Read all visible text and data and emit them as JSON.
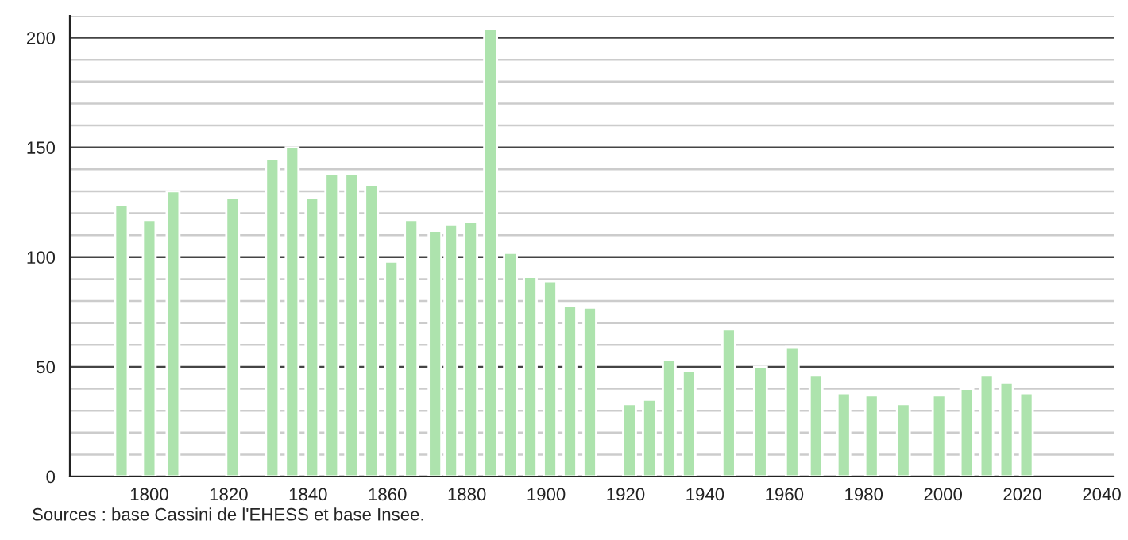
{
  "chart_data": {
    "type": "bar",
    "x": [
      1793,
      1800,
      1806,
      1821,
      1831,
      1836,
      1841,
      1846,
      1851,
      1856,
      1861,
      1866,
      1872,
      1876,
      1881,
      1886,
      1891,
      1896,
      1901,
      1906,
      1911,
      1921,
      1926,
      1931,
      1936,
      1946,
      1954,
      1962,
      1968,
      1975,
      1982,
      1990,
      1999,
      2006,
      2011,
      2016,
      2021
    ],
    "values": [
      124,
      117,
      130,
      127,
      145,
      150,
      127,
      138,
      138,
      133,
      98,
      117,
      112,
      115,
      116,
      204,
      102,
      91,
      89,
      78,
      77,
      33,
      35,
      53,
      48,
      67,
      50,
      59,
      46,
      38,
      37,
      33,
      37,
      40,
      46,
      43,
      38
    ],
    "color": "#ade3ad",
    "xlim": [
      1780,
      2043
    ],
    "xticks": [
      1800,
      1820,
      1840,
      1860,
      1880,
      1900,
      1920,
      1940,
      1960,
      1980,
      2000,
      2020,
      2040
    ],
    "ylim": [
      0,
      210
    ],
    "yticks": [
      0,
      {
        "value": 10,
        "label": null
      },
      {
        "value": 20,
        "label": null
      },
      {
        "value": 30,
        "label": null
      },
      {
        "value": 40,
        "label": null
      },
      50,
      {
        "value": 60,
        "label": null
      },
      {
        "value": 70,
        "label": null
      },
      {
        "value": 80,
        "label": null
      },
      {
        "value": 90,
        "label": null
      },
      100,
      {
        "value": 110,
        "label": null
      },
      {
        "value": 120,
        "label": null
      },
      {
        "value": 130,
        "label": null
      },
      {
        "value": 140,
        "label": null
      },
      150,
      {
        "value": 160,
        "label": null
      },
      {
        "value": 170,
        "label": null
      },
      {
        "value": 180,
        "label": null
      },
      {
        "value": 190,
        "label": null
      },
      200,
      {
        "value": 210,
        "label": null
      }
    ],
    "grid": "y",
    "annotations": [
      "Sources : base Cassini de l'EHESS et base Insee."
    ]
  }
}
